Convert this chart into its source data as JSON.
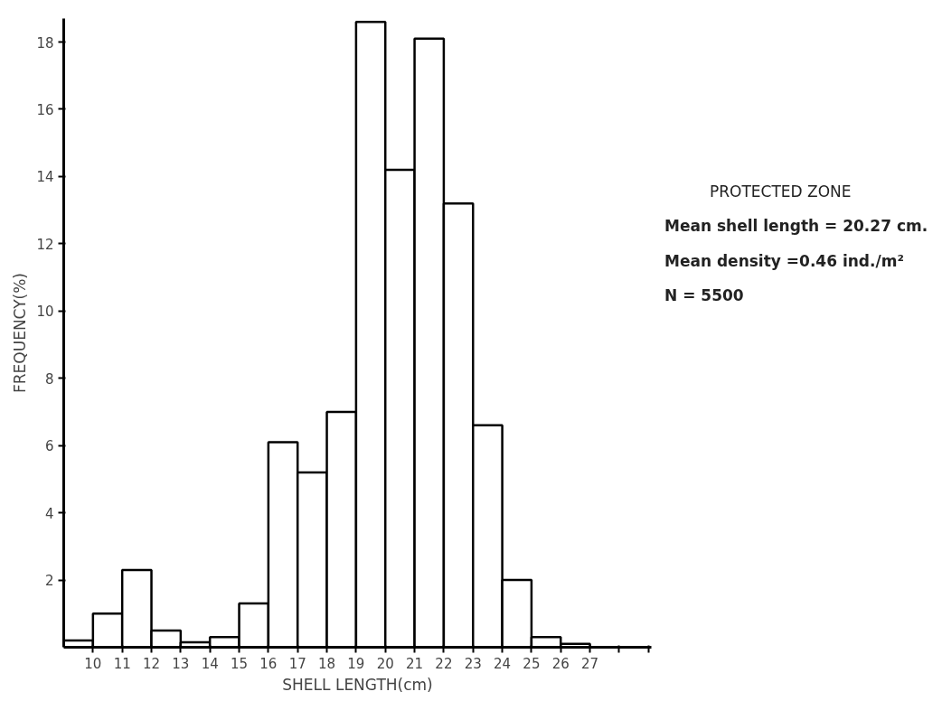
{
  "chart_data": {
    "type": "histogram",
    "xlabel": "SHELL LENGTH(cm)",
    "ylabel": "FREQUENCY(%)",
    "bins": [
      9,
      10,
      11,
      12,
      13,
      14,
      15,
      16,
      17,
      18,
      19,
      20,
      21,
      22,
      23,
      24,
      25,
      26,
      27
    ],
    "values": [
      0.2,
      1.0,
      2.3,
      0.5,
      0.15,
      0.3,
      1.3,
      6.1,
      5.2,
      7.0,
      18.6,
      14.2,
      18.1,
      13.2,
      6.6,
      2.0,
      0.3,
      0.1
    ],
    "color": "#ffffff",
    "xlim": [
      9,
      29.1
    ],
    "ylim": [
      0,
      18.7
    ],
    "xticks": [
      10,
      11,
      12,
      13,
      14,
      15,
      16,
      17,
      18,
      19,
      20,
      21,
      22,
      23,
      24,
      25,
      26,
      27,
      {
        "value": 28,
        "label": null
      },
      {
        "value": 29,
        "label": null
      }
    ],
    "yticks": [
      2,
      4,
      6,
      8,
      10,
      12,
      14,
      16,
      18
    ],
    "grid": false,
    "annotations": [
      "PROTECTED ZONE",
      "Mean shell length = 20.27 cm.",
      "Mean density =0.46 ind./m²",
      "N = 5500"
    ]
  }
}
